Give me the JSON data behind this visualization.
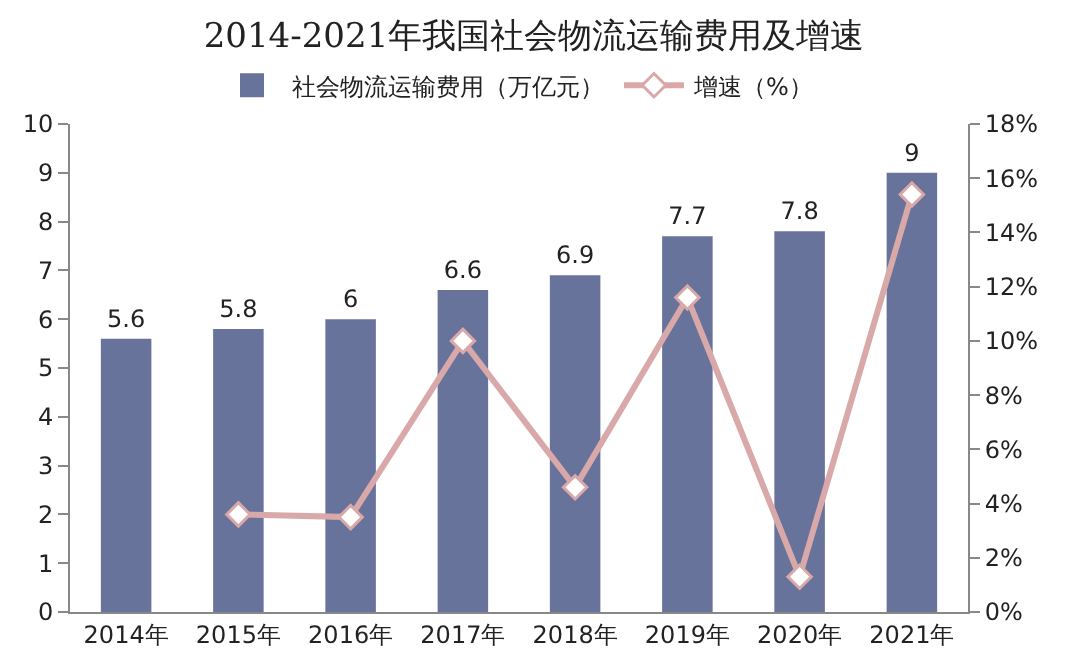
{
  "chart_data": {
    "type": "bar",
    "title": "2014-2021年我国社会物流运输费用及增速",
    "categories": [
      "2014年",
      "2015年",
      "2016年",
      "2017年",
      "2018年",
      "2019年",
      "2020年",
      "2021年"
    ],
    "series": [
      {
        "name": "社会物流运输费用（万亿元）",
        "color": "#67739a",
        "values": [
          5.6,
          5.8,
          6,
          6.6,
          6.9,
          7.7,
          7.8,
          9
        ],
        "value_labels": [
          "5.6",
          "5.8",
          "6",
          "6.6",
          "6.9",
          "7.7",
          "7.8",
          "9"
        ]
      },
      {
        "name": "增速（%）",
        "type": "line",
        "axis": "y2",
        "color": "#d9a8a8",
        "marker": "diamond",
        "values": [
          null,
          3.6,
          3.5,
          10.0,
          4.6,
          11.6,
          1.3,
          15.4
        ]
      }
    ],
    "ylim": [
      0,
      10
    ],
    "yticks": [
      0,
      1,
      2,
      3,
      4,
      5,
      6,
      7,
      8,
      9,
      10
    ],
    "y2lim": [
      0,
      18
    ],
    "y2ticks": [
      {
        "value": 0,
        "label": "0%"
      },
      {
        "value": 2,
        "label": "2%"
      },
      {
        "value": 4,
        "label": "4%"
      },
      {
        "value": 6,
        "label": "6%"
      },
      {
        "value": 8,
        "label": "8%"
      },
      {
        "value": 10,
        "label": "10%"
      },
      {
        "value": 12,
        "label": "12%"
      },
      {
        "value": 14,
        "label": "14%"
      },
      {
        "value": 16,
        "label": "16%"
      },
      {
        "value": 18,
        "label": "18%"
      }
    ],
    "legend": "top"
  }
}
